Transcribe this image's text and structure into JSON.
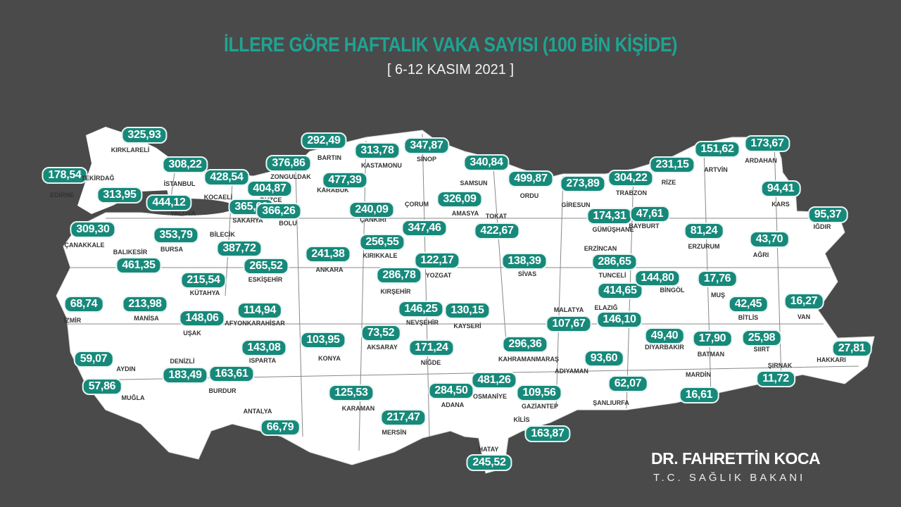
{
  "header": {
    "title": "İLLERE GÖRE HAFTALIK VAKA SAYISI (100 BİN KİŞİDE)",
    "subtitle": "[ 6-12 KASIM 2021 ]"
  },
  "colors": {
    "background": "#4a4a4a",
    "title": "#1fa392",
    "badge": "#17897a",
    "land": "#ffffff"
  },
  "provinces": [
    {
      "name": "KIRKLARELİ",
      "value": "325,93"
    },
    {
      "name": "EDİRNE",
      "value": "178,54"
    },
    {
      "name": "TEKİRDAĞ",
      "value": "313,95"
    },
    {
      "name": "İSTANBUL",
      "value": "308,22"
    },
    {
      "name": "KOCAELİ",
      "value": "428,54"
    },
    {
      "name": "YALOVA",
      "value": "444,12"
    },
    {
      "name": "DÜZCE",
      "value": "404,87"
    },
    {
      "name": "SAKARYA",
      "value": "365,03"
    },
    {
      "name": "ZONGULDAK",
      "value": "376,86"
    },
    {
      "name": "BARTIN",
      "value": "292,49"
    },
    {
      "name": "KARABÜK",
      "value": "477,39"
    },
    {
      "name": "KASTAMONU",
      "value": "313,78"
    },
    {
      "name": "SİNOP",
      "value": "347,87"
    },
    {
      "name": "SAMSUN",
      "value": "340,84"
    },
    {
      "name": "ORDU",
      "value": "499,87"
    },
    {
      "name": "GİRESUN",
      "value": "273,89"
    },
    {
      "name": "TRABZON",
      "value": "304,22"
    },
    {
      "name": "RİZE",
      "value": "231,15"
    },
    {
      "name": "ARTVİN",
      "value": "151,62"
    },
    {
      "name": "ARDAHAN",
      "value": "173,67"
    },
    {
      "name": "BOLU",
      "value": "366,26"
    },
    {
      "name": "ÇANKIRI",
      "value": "240,09"
    },
    {
      "name": "ÇORUM",
      "value": "347,46"
    },
    {
      "name": "AMASYA",
      "value": "326,09"
    },
    {
      "name": "TOKAT",
      "value": "422,67"
    },
    {
      "name": "BİLECİK",
      "value": "387,72"
    },
    {
      "name": "BURSA",
      "value": "353,79"
    },
    {
      "name": "ÇANAKKALE",
      "value": "309,30"
    },
    {
      "name": "BALIKESİR",
      "value": "461,35"
    },
    {
      "name": "ANKARA",
      "value": "241,38"
    },
    {
      "name": "KIRIKKALE",
      "value": "256,55"
    },
    {
      "name": "YOZGAT",
      "value": "122,17"
    },
    {
      "name": "SİVAS",
      "value": "138,39"
    },
    {
      "name": "ESKİŞEHİR",
      "value": "265,52"
    },
    {
      "name": "KÜTAHYA",
      "value": "215,54"
    },
    {
      "name": "KIRŞEHİR",
      "value": "286,78"
    },
    {
      "name": "GÜMÜŞHANE",
      "value": "174,31"
    },
    {
      "name": "BAYBURT",
      "value": "47,61"
    },
    {
      "name": "KARS",
      "value": "94,41"
    },
    {
      "name": "IĞDIR",
      "value": "95,37"
    },
    {
      "name": "ERZURUM",
      "value": "81,24"
    },
    {
      "name": "AĞRI",
      "value": "43,70"
    },
    {
      "name": "ERZİNCAN",
      "value": "286,65"
    },
    {
      "name": "TUNCELİ",
      "value": "414,65"
    },
    {
      "name": "ELAZIĞ",
      "value": "146,10"
    },
    {
      "name": "MALATYA",
      "value": "107,67"
    },
    {
      "name": "BİNGÖL",
      "value": "144,80"
    },
    {
      "name": "MUŞ",
      "value": "17,76"
    },
    {
      "name": "BİTLİS",
      "value": "42,45"
    },
    {
      "name": "VAN",
      "value": "16,27"
    },
    {
      "name": "DİYARBAKIR",
      "value": "49,40"
    },
    {
      "name": "BATMAN",
      "value": "17,90"
    },
    {
      "name": "SİİRT",
      "value": "25,98"
    },
    {
      "name": "HAKKARİ",
      "value": "27,81"
    },
    {
      "name": "ŞIRNAK",
      "value": "11,72"
    },
    {
      "name": "MARDİN",
      "value": "16,61"
    },
    {
      "name": "ŞANLIURFA",
      "value": "62,07"
    },
    {
      "name": "ADIYAMAN",
      "value": "93,60"
    },
    {
      "name": "KAHRAMANMARAŞ",
      "value": "296,36"
    },
    {
      "name": "GAZİANTEP",
      "value": "109,56"
    },
    {
      "name": "KİLİS",
      "value": "163,87"
    },
    {
      "name": "OSMANİYE",
      "value": "481,26"
    },
    {
      "name": "ADANA",
      "value": "284,50"
    },
    {
      "name": "HATAY",
      "value": "245,52"
    },
    {
      "name": "MERSİN",
      "value": "217,47"
    },
    {
      "name": "KARAMAN",
      "value": "125,53"
    },
    {
      "name": "NİĞDE",
      "value": "171,24"
    },
    {
      "name": "AKSARAY",
      "value": "73,52"
    },
    {
      "name": "NEVŞEHİR",
      "value": "146,25"
    },
    {
      "name": "KAYSERİ",
      "value": "130,15"
    },
    {
      "name": "KONYA",
      "value": "103,95"
    },
    {
      "name": "AFYONKARAHİSAR",
      "value": "114,94"
    },
    {
      "name": "UŞAK",
      "value": "148,06"
    },
    {
      "name": "İZMİR",
      "value": "68,74"
    },
    {
      "name": "MANİSA",
      "value": "213,98"
    },
    {
      "name": "AYDIN",
      "value": "59,07"
    },
    {
      "name": "MUĞLA",
      "value": "57,86"
    },
    {
      "name": "DENİZLİ",
      "value": "183,49"
    },
    {
      "name": "BURDUR",
      "value": "163,61"
    },
    {
      "name": "ISPARTA",
      "value": "143,08"
    },
    {
      "name": "ANTALYA",
      "value": "66,79"
    }
  ],
  "footer": {
    "name": "DR. FAHRETTİN KOCA",
    "role": "T.C. SAĞLIK BAKANI"
  }
}
